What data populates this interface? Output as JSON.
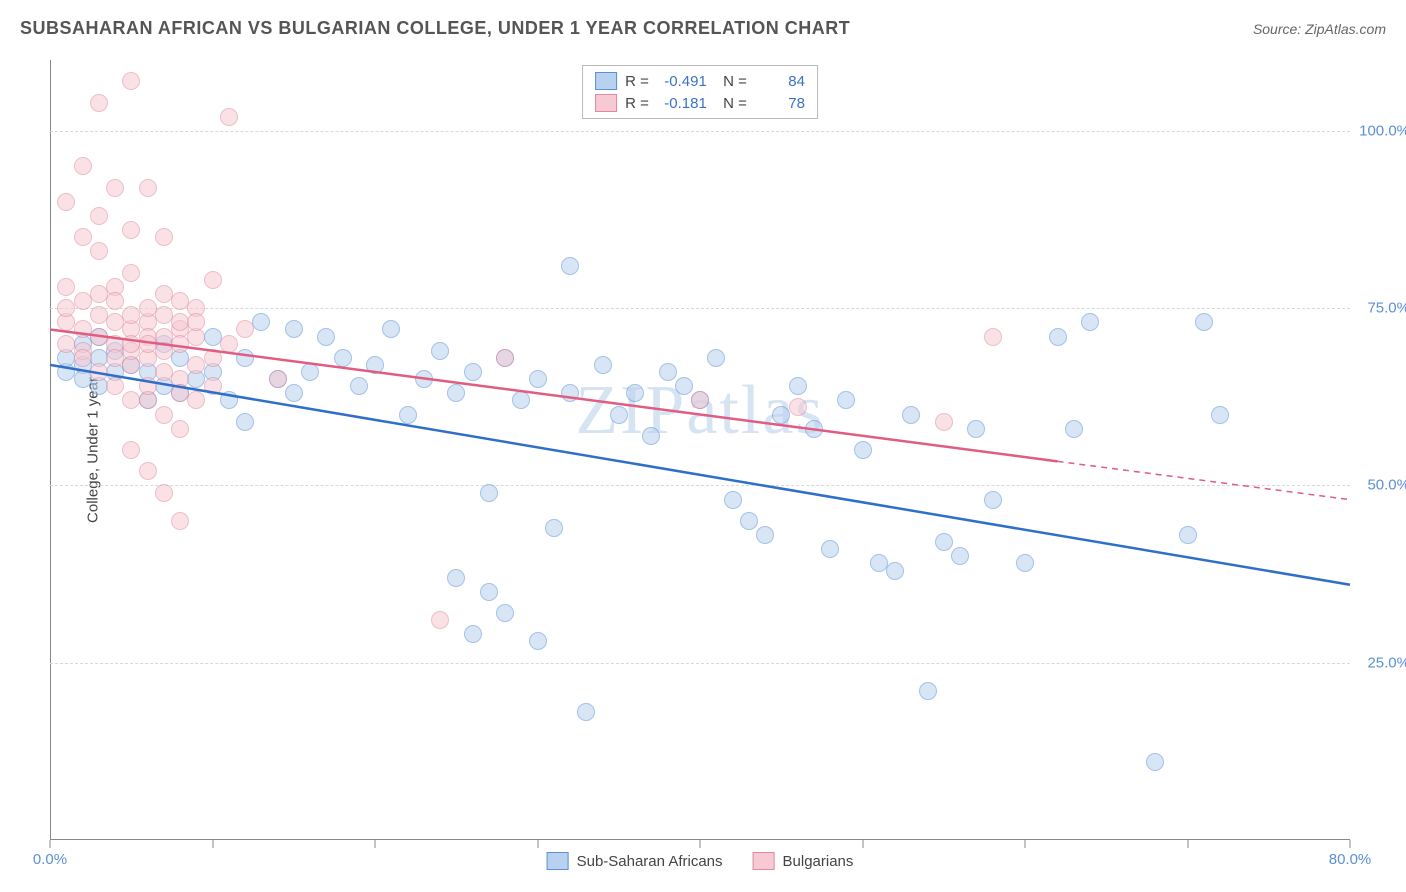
{
  "title": "SUBSAHARAN AFRICAN VS BULGARIAN COLLEGE, UNDER 1 YEAR CORRELATION CHART",
  "source": "Source: ZipAtlas.com",
  "watermark": "ZIPatlas",
  "y_axis_label": "College, Under 1 year",
  "chart": {
    "type": "scatter",
    "xlim": [
      0,
      80
    ],
    "ylim": [
      0,
      110
    ],
    "x_ticks": [
      0,
      10,
      20,
      30,
      40,
      50,
      60,
      70,
      80
    ],
    "x_tick_labels_shown": {
      "0": "0.0%",
      "80": "80.0%"
    },
    "y_ticks": [
      25,
      50,
      75,
      100
    ],
    "y_tick_labels": [
      "25.0%",
      "50.0%",
      "75.0%",
      "100.0%"
    ],
    "background_color": "#ffffff",
    "grid_color": "#d8d8d8",
    "axis_color": "#888888",
    "marker_radius": 9,
    "marker_opacity": 0.55,
    "marker_stroke_width": 1,
    "series": [
      {
        "name": "Sub-Saharan Africans",
        "color_fill": "#b8d1ee",
        "color_stroke": "#5b8fd6",
        "line_color": "#2f6fc9",
        "R": "-0.491",
        "N": "84",
        "trend": {
          "x1": 0,
          "y1": 67,
          "x2": 80,
          "y2": 36,
          "dashed_from_x": null
        },
        "points": [
          [
            1,
            66
          ],
          [
            1,
            68
          ],
          [
            2,
            67
          ],
          [
            2,
            65
          ],
          [
            2,
            70
          ],
          [
            3,
            64
          ],
          [
            3,
            71
          ],
          [
            3,
            68
          ],
          [
            4,
            66
          ],
          [
            4,
            69
          ],
          [
            5,
            67
          ],
          [
            6,
            66
          ],
          [
            6,
            62
          ],
          [
            7,
            64
          ],
          [
            7,
            70
          ],
          [
            8,
            68
          ],
          [
            8,
            63
          ],
          [
            9,
            65
          ],
          [
            10,
            66
          ],
          [
            10,
            71
          ],
          [
            11,
            62
          ],
          [
            12,
            68
          ],
          [
            12,
            59
          ],
          [
            13,
            73
          ],
          [
            14,
            65
          ],
          [
            15,
            72
          ],
          [
            15,
            63
          ],
          [
            16,
            66
          ],
          [
            17,
            71
          ],
          [
            18,
            68
          ],
          [
            19,
            64
          ],
          [
            20,
            67
          ],
          [
            21,
            72
          ],
          [
            22,
            60
          ],
          [
            23,
            65
          ],
          [
            24,
            69
          ],
          [
            25,
            37
          ],
          [
            25,
            63
          ],
          [
            26,
            66
          ],
          [
            26,
            29
          ],
          [
            27,
            49
          ],
          [
            27,
            35
          ],
          [
            28,
            68
          ],
          [
            28,
            32
          ],
          [
            29,
            62
          ],
          [
            30,
            65
          ],
          [
            30,
            28
          ],
          [
            31,
            44
          ],
          [
            32,
            81
          ],
          [
            32,
            63
          ],
          [
            33,
            18
          ],
          [
            34,
            67
          ],
          [
            35,
            60
          ],
          [
            36,
            63
          ],
          [
            37,
            57
          ],
          [
            38,
            66
          ],
          [
            39,
            64
          ],
          [
            40,
            62
          ],
          [
            41,
            68
          ],
          [
            42,
            48
          ],
          [
            43,
            45
          ],
          [
            44,
            43
          ],
          [
            45,
            60
          ],
          [
            46,
            64
          ],
          [
            47,
            58
          ],
          [
            48,
            41
          ],
          [
            49,
            62
          ],
          [
            50,
            55
          ],
          [
            51,
            39
          ],
          [
            52,
            38
          ],
          [
            53,
            60
          ],
          [
            54,
            21
          ],
          [
            55,
            42
          ],
          [
            56,
            40
          ],
          [
            57,
            58
          ],
          [
            58,
            48
          ],
          [
            60,
            39
          ],
          [
            62,
            71
          ],
          [
            63,
            58
          ],
          [
            64,
            73
          ],
          [
            68,
            11
          ],
          [
            70,
            43
          ],
          [
            71,
            73
          ],
          [
            72,
            60
          ]
        ]
      },
      {
        "name": "Bulgarians",
        "color_fill": "#f6c9d3",
        "color_stroke": "#e089a0",
        "line_color": "#e05c81",
        "R": "-0.181",
        "N": "78",
        "trend": {
          "x1": 0,
          "y1": 72,
          "x2": 80,
          "y2": 48,
          "dashed_from_x": 62
        },
        "points": [
          [
            1,
            73
          ],
          [
            1,
            78
          ],
          [
            1,
            75
          ],
          [
            1,
            70
          ],
          [
            1,
            90
          ],
          [
            2,
            72
          ],
          [
            2,
            76
          ],
          [
            2,
            85
          ],
          [
            2,
            69
          ],
          [
            2,
            95
          ],
          [
            2,
            68
          ],
          [
            3,
            74
          ],
          [
            3,
            77
          ],
          [
            3,
            83
          ],
          [
            3,
            66
          ],
          [
            3,
            104
          ],
          [
            3,
            71
          ],
          [
            3,
            88
          ],
          [
            4,
            73
          ],
          [
            4,
            70
          ],
          [
            4,
            78
          ],
          [
            4,
            64
          ],
          [
            4,
            92
          ],
          [
            4,
            68
          ],
          [
            4,
            76
          ],
          [
            5,
            72
          ],
          [
            5,
            80
          ],
          [
            5,
            67
          ],
          [
            5,
            74
          ],
          [
            5,
            62
          ],
          [
            5,
            86
          ],
          [
            5,
            107
          ],
          [
            5,
            69
          ],
          [
            5,
            70
          ],
          [
            5,
            55
          ],
          [
            6,
            73
          ],
          [
            6,
            71
          ],
          [
            6,
            62
          ],
          [
            6,
            75
          ],
          [
            6,
            68
          ],
          [
            6,
            64
          ],
          [
            6,
            52
          ],
          [
            6,
            70
          ],
          [
            6,
            92
          ],
          [
            7,
            74
          ],
          [
            7,
            77
          ],
          [
            7,
            66
          ],
          [
            7,
            60
          ],
          [
            7,
            71
          ],
          [
            7,
            49
          ],
          [
            7,
            85
          ],
          [
            7,
            69
          ],
          [
            8,
            72
          ],
          [
            8,
            65
          ],
          [
            8,
            63
          ],
          [
            8,
            76
          ],
          [
            8,
            70
          ],
          [
            8,
            58
          ],
          [
            8,
            73
          ],
          [
            8,
            45
          ],
          [
            9,
            67
          ],
          [
            9,
            62
          ],
          [
            9,
            71
          ],
          [
            9,
            75
          ],
          [
            9,
            73
          ],
          [
            10,
            79
          ],
          [
            10,
            64
          ],
          [
            10,
            68
          ],
          [
            11,
            102
          ],
          [
            11,
            70
          ],
          [
            12,
            72
          ],
          [
            14,
            65
          ],
          [
            24,
            31
          ],
          [
            28,
            68
          ],
          [
            40,
            62
          ],
          [
            46,
            61
          ],
          [
            55,
            59
          ],
          [
            58,
            71
          ]
        ]
      }
    ]
  }
}
